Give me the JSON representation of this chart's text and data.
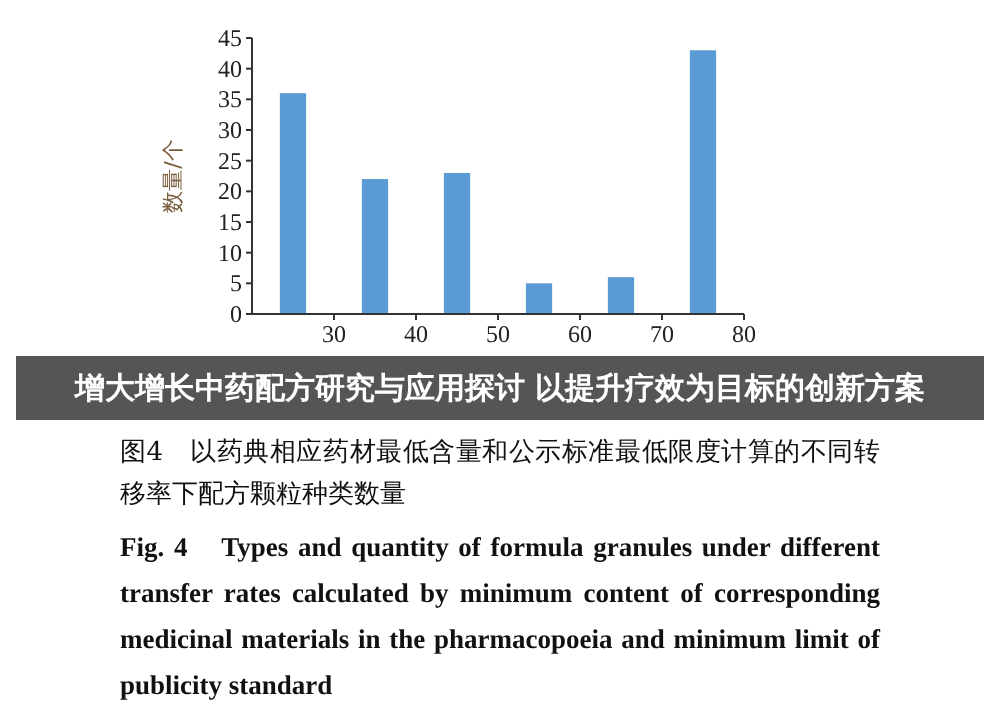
{
  "chart_data": {
    "type": "bar",
    "ylabel": "数量/个",
    "x": [
      25,
      35,
      45,
      55,
      65,
      75
    ],
    "values": [
      36,
      22,
      23,
      5,
      6,
      43
    ],
    "color": "#5b9bd5",
    "xlim": [
      20,
      80
    ],
    "xticks": [
      30,
      40,
      50,
      60,
      70,
      80
    ],
    "ylim": [
      0,
      45
    ],
    "yticks": [
      0,
      5,
      10,
      15,
      20,
      25,
      30,
      35,
      40,
      45
    ],
    "annotations": [
      "增大增长中药配方研究与应用探讨 以提升疗效为目标的创新方案",
      "图4　以药典相应药材最低含量和公示标准最低限度计算的不同转移率下配方颗粒种类数量",
      "Fig. 4　Types and quantity of formula granules under different transfer rates calculated by minimum content of corresponding medicinal materials in the pharmacopoeia and minimum limit of publicity standard"
    ]
  }
}
